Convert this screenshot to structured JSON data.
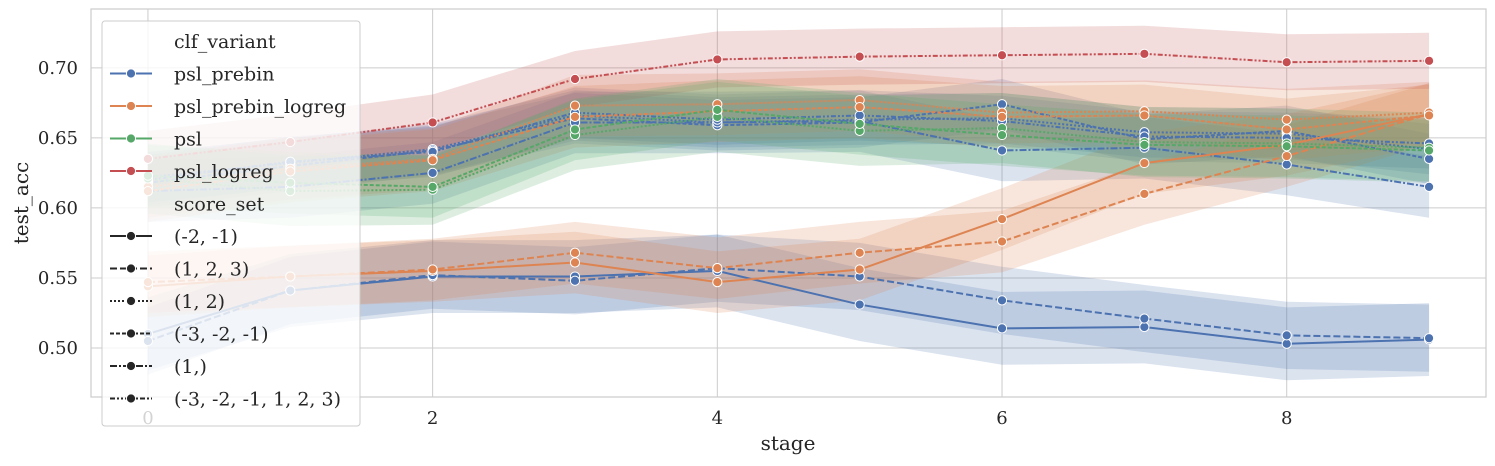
{
  "chart_data": {
    "type": "line",
    "xlabel": "stage",
    "ylabel": "test_acc",
    "xlim": [
      -0.4,
      9.4
    ],
    "ylim": [
      0.465,
      0.742
    ],
    "x_ticks": [
      0,
      2,
      4,
      6,
      8
    ],
    "y_ticks": [
      0.5,
      0.55,
      0.6,
      0.65,
      0.7
    ],
    "x_tick_labels": [
      "0",
      "2",
      "4",
      "6",
      "8"
    ],
    "y_tick_labels": [
      "0.50",
      "0.55",
      "0.60",
      "0.65",
      "0.70"
    ],
    "grid": true,
    "confidence_bands": true,
    "legend_position": "upper-left",
    "legend": {
      "hue_title": "clf_variant",
      "style_title": "score_set",
      "hue_entries": [
        {
          "label": "psl_prebin",
          "color": "#4c72b0"
        },
        {
          "label": "psl_prebin_logreg",
          "color": "#dd8452"
        },
        {
          "label": "psl",
          "color": "#55a868"
        },
        {
          "label": "psl_logreg",
          "color": "#c44e52"
        }
      ],
      "style_entries": [
        {
          "label": "(-2, -1)",
          "dash": ""
        },
        {
          "label": "(1, 2, 3)",
          "dash": "7,3"
        },
        {
          "label": "(1, 2)",
          "dash": "2,2"
        },
        {
          "label": "(-3, -2, -1)",
          "dash": "4,2"
        },
        {
          "label": "(1,)",
          "dash": "7,2,2,2"
        },
        {
          "label": "(-3, -2, -1, 1, 2, 3)",
          "dash": "5,2,2,2,2,2"
        }
      ]
    },
    "x": [
      0,
      1,
      2,
      3,
      4,
      5,
      6,
      7,
      8,
      9
    ],
    "series": [
      {
        "clf_variant": "psl_prebin",
        "score_set": "(-2, -1)",
        "color": "#4c72b0",
        "dash": "",
        "band": 0.026,
        "values": [
          0.51,
          0.541,
          0.551,
          0.551,
          0.555,
          0.531,
          0.514,
          0.515,
          0.503,
          0.506
        ]
      },
      {
        "clf_variant": "psl_prebin",
        "score_set": "(1, 2, 3)",
        "color": "#4c72b0",
        "dash": "7,3",
        "band": 0.024,
        "values": [
          0.505,
          0.541,
          0.552,
          0.548,
          0.557,
          0.551,
          0.534,
          0.521,
          0.509,
          0.507
        ]
      },
      {
        "clf_variant": "psl_prebin",
        "score_set": "(1, 2)",
        "color": "#4c72b0",
        "dash": "2,2",
        "band": 0.018,
        "values": [
          0.622,
          0.632,
          0.642,
          0.666,
          0.661,
          0.663,
          0.664,
          0.654,
          0.653,
          0.642
        ]
      },
      {
        "clf_variant": "psl_prebin",
        "score_set": "(-3, -2, -1)",
        "color": "#4c72b0",
        "dash": "4,2",
        "band": 0.018,
        "values": [
          0.618,
          0.63,
          0.641,
          0.664,
          0.659,
          0.661,
          0.674,
          0.649,
          0.655,
          0.635
        ]
      },
      {
        "clf_variant": "psl_prebin",
        "score_set": "(1,)",
        "color": "#4c72b0",
        "dash": "7,2,2,2",
        "band": 0.022,
        "values": [
          0.612,
          0.615,
          0.625,
          0.661,
          0.661,
          0.662,
          0.641,
          0.643,
          0.631,
          0.615
        ]
      },
      {
        "clf_variant": "psl_prebin",
        "score_set": "(-3, -2, -1, 1, 2, 3)",
        "color": "#4c72b0",
        "dash": "5,2,2,2,2,2",
        "band": 0.018,
        "values": [
          0.62,
          0.633,
          0.64,
          0.668,
          0.663,
          0.666,
          0.662,
          0.651,
          0.65,
          0.646
        ]
      },
      {
        "clf_variant": "psl_prebin_logreg",
        "score_set": "(-2, -1)",
        "color": "#dd8452",
        "dash": "",
        "band": 0.022,
        "values": [
          0.544,
          0.551,
          0.555,
          0.561,
          0.547,
          0.556,
          0.592,
          0.632,
          0.645,
          0.667
        ]
      },
      {
        "clf_variant": "psl_prebin_logreg",
        "score_set": "(1, 2, 3)",
        "color": "#dd8452",
        "dash": "7,3",
        "band": 0.022,
        "values": [
          0.547,
          0.551,
          0.556,
          0.568,
          0.557,
          0.568,
          0.576,
          0.61,
          0.637,
          0.667
        ]
      },
      {
        "clf_variant": "psl_prebin_logreg",
        "score_set": "(1, 2)",
        "color": "#dd8452",
        "dash": "2,2",
        "band": 0.022,
        "values": [
          0.615,
          0.628,
          0.635,
          0.673,
          0.674,
          0.677,
          0.668,
          0.669,
          0.663,
          0.668
        ]
      },
      {
        "clf_variant": "psl_prebin_logreg",
        "score_set": "(-3, -2, -1)",
        "color": "#dd8452",
        "dash": "4,2",
        "band": 0.022,
        "values": [
          0.612,
          0.626,
          0.634,
          0.665,
          0.669,
          0.672,
          0.665,
          0.666,
          0.656,
          0.666
        ]
      },
      {
        "clf_variant": "psl_logreg",
        "score_set": "(-3, -2, -1, 1, 2, 3)",
        "color": "#c44e52",
        "dash": "5,2,2,2,2,2",
        "band": 0.02,
        "values": [
          0.635,
          0.647,
          0.661,
          0.692,
          0.706,
          0.708,
          0.709,
          0.71,
          0.704,
          0.705
        ]
      },
      {
        "clf_variant": "psl",
        "score_set": "(1, 2)",
        "color": "#55a868",
        "dash": "2,2",
        "band": 0.025,
        "values": [
          0.621,
          0.612,
          0.613,
          0.652,
          0.665,
          0.655,
          0.657,
          0.647,
          0.646,
          0.643
        ]
      },
      {
        "clf_variant": "psl",
        "score_set": "(-3, -2, -1)",
        "color": "#55a868",
        "dash": "4,2",
        "band": 0.022,
        "values": [
          0.623,
          0.618,
          0.615,
          0.656,
          0.67,
          0.66,
          0.652,
          0.645,
          0.644,
          0.641
        ]
      }
    ]
  }
}
